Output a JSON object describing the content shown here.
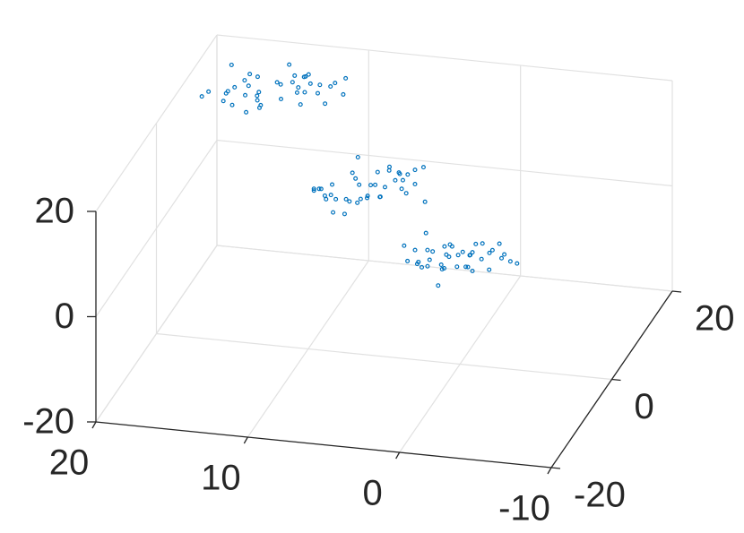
{
  "chart_data": {
    "type": "scatter3d",
    "color": "#0072bd",
    "grid": true,
    "xlim": [
      -10,
      20
    ],
    "ylim": [
      -20,
      20
    ],
    "zlim": [
      -20,
      20
    ],
    "xticks": [
      -10,
      0,
      10,
      20
    ],
    "yticks": [
      -20,
      0,
      20
    ],
    "zticks": [
      -20,
      0,
      20
    ],
    "x": [
      11.8,
      16.5,
      15.4,
      13.2,
      17.7,
      14.4,
      18.9,
      12.5,
      16.1,
      10.9,
      15.8,
      17.2,
      13.7,
      14.8,
      18.1,
      12.1,
      16.7,
      14.1,
      19.4,
      11.4,
      15.1,
      17.9,
      13.4,
      16.3,
      12.8,
      18.5,
      14.6,
      15.9,
      11.1,
      17.0,
      13.9,
      16.8,
      12.3,
      15.6,
      18.3,
      14.2,
      13.1,
      17.5,
      14.7,
      16.2,
      8.4,
      4.9,
      10.0,
      7.2,
      5.5,
      9.6,
      3.7,
      7.7,
      6.5,
      8.9,
      4.2,
      7.3,
      10.7,
      5.8,
      4.6,
      8.1,
      6.3,
      9.3,
      4.0,
      7.9,
      8.6,
      5.1,
      9.8,
      6.9,
      3.5,
      7.5,
      8.8,
      4.8,
      9.1,
      6.1,
      10.2,
      5.6,
      7.4,
      4.4,
      8.3,
      9.4,
      6.4,
      5.3,
      10.4,
      6.8,
      0.6,
      2.3,
      -1.4,
      3.1,
      -2.2,
      0.9,
      1.5,
      -0.3,
      -3.1,
      2.0,
      1.2,
      -1.7,
      0.4,
      2.7,
      -0.8,
      -2.5,
      3.3,
      -1.0,
      0.2,
      1.8,
      -2.9,
      0.7,
      -0.5,
      2.4,
      1.0,
      -1.9,
      3.6,
      -0.2,
      -1.3,
      2.2,
      0.3,
      -3.4,
      1.6,
      -0.7,
      2.9,
      -2.1,
      0.8,
      1.4,
      -1.1,
      -0.4
    ],
    "y": [
      16.4,
      12.9,
      18.0,
      15.2,
      13.5,
      17.6,
      11.7,
      15.7,
      14.5,
      16.9,
      12.2,
      15.3,
      18.7,
      13.8,
      12.6,
      16.1,
      14.3,
      17.3,
      12.0,
      15.9,
      16.6,
      13.1,
      17.8,
      14.9,
      11.5,
      15.5,
      16.8,
      12.8,
      17.1,
      14.1,
      18.2,
      13.6,
      15.4,
      12.4,
      16.3,
      17.4,
      14.4,
      13.3,
      18.4,
      14.8,
      5.6,
      7.3,
      3.6,
      8.1,
      2.8,
      5.9,
      6.5,
      4.7,
      1.9,
      7.0,
      6.2,
      3.3,
      5.4,
      7.7,
      4.2,
      2.5,
      8.3,
      4.0,
      5.2,
      6.8,
      2.1,
      5.7,
      4.5,
      7.4,
      6.0,
      3.1,
      8.6,
      4.8,
      3.7,
      7.2,
      5.3,
      1.6,
      6.6,
      4.3,
      7.9,
      2.9,
      5.8,
      6.4,
      3.9,
      4.6,
      -3.2,
      1.5,
      0.4,
      -1.8,
      2.7,
      -0.6,
      3.9,
      -2.5,
      1.1,
      -4.1,
      0.8,
      2.2,
      -1.3,
      -0.2,
      3.1,
      -2.9,
      1.7,
      -0.9,
      4.4,
      -3.6,
      0.1,
      2.9,
      -1.6,
      1.3,
      -2.2,
      3.5,
      -0.4,
      0.9,
      -3.9,
      2.0,
      -1.1,
      1.8,
      -2.7,
      0.6,
      3.3,
      -0.8,
      -1.9,
      2.5,
      -0.3,
      1.2
    ],
    "z": [
      15.6,
      17.3,
      13.6,
      18.1,
      12.8,
      15.9,
      16.5,
      14.7,
      11.9,
      17.0,
      16.2,
      13.3,
      15.4,
      17.7,
      14.2,
      12.5,
      18.3,
      14.0,
      15.2,
      16.8,
      12.1,
      15.7,
      14.5,
      17.4,
      16.0,
      13.1,
      18.6,
      14.8,
      13.7,
      17.2,
      15.3,
      11.6,
      16.6,
      14.3,
      17.9,
      12.9,
      15.8,
      16.4,
      13.9,
      14.6,
      3.8,
      8.5,
      7.4,
      5.2,
      9.7,
      6.4,
      10.9,
      4.5,
      8.1,
      2.9,
      7.8,
      9.2,
      5.7,
      6.8,
      10.1,
      4.1,
      8.7,
      6.1,
      11.4,
      3.4,
      7.1,
      9.9,
      5.4,
      8.3,
      4.8,
      10.5,
      6.6,
      7.9,
      3.1,
      9.0,
      5.9,
      8.8,
      4.3,
      7.6,
      10.3,
      6.2,
      5.1,
      9.5,
      6.7,
      8.2,
      1.4,
      -2.1,
      3.0,
      0.2,
      -1.5,
      2.6,
      -3.3,
      0.7,
      -0.5,
      1.9,
      -2.8,
      0.3,
      3.7,
      -1.2,
      -2.4,
      1.1,
      -0.7,
      2.3,
      -3.0,
      0.9,
      1.6,
      -1.9,
      2.8,
      -0.1,
      -3.5,
      0.5,
      1.8,
      -2.2,
      2.1,
      -0.9,
      3.2,
      -1.4,
      0.4,
      -2.6,
      1.3,
      2.4,
      -0.6,
      -1.7,
      3.4,
      -0.2
    ]
  }
}
